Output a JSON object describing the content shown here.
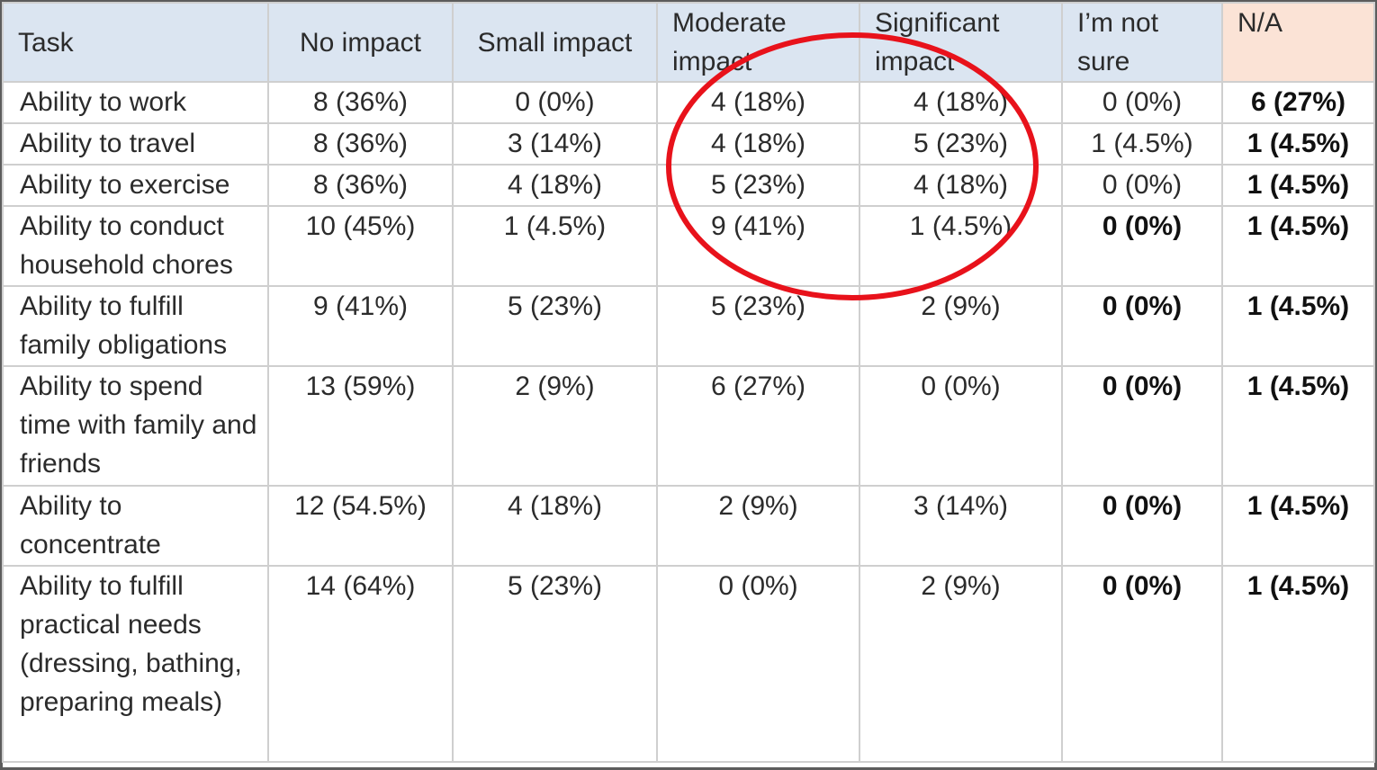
{
  "table": {
    "headers": {
      "task": "Task",
      "no_impact": "No impact",
      "small_impact": "Small impact",
      "moderate_impact": "Moderate impact",
      "significant_impact": "Significant impact",
      "not_sure": "I’m not sure",
      "na": "N/A"
    },
    "rows": [
      {
        "task": "Ability to work",
        "no": "8 (36%)",
        "small": "0 (0%)",
        "moderate": "4 (18%)",
        "significant": "4 (18%)",
        "notsure": "0 (0%)",
        "na": "6 (27%)"
      },
      {
        "task": "Ability to travel",
        "no": "8 (36%)",
        "small": "3 (14%)",
        "moderate": "4 (18%)",
        "significant": "5 (23%)",
        "notsure": "1 (4.5%)",
        "na": "1 (4.5%)"
      },
      {
        "task": "Ability to exercise",
        "no": "8 (36%)",
        "small": "4 (18%)",
        "moderate": "5 (23%)",
        "significant": "4 (18%)",
        "notsure": "0 (0%)",
        "na": "1 (4.5%)"
      },
      {
        "task": "Ability to conduct household chores",
        "no": "10 (45%)",
        "small": "1 (4.5%)",
        "moderate": "9 (41%)",
        "significant": "1 (4.5%)",
        "notsure": "0 (0%)",
        "na": "1 (4.5%)"
      },
      {
        "task": "Ability to fulfill family obligations",
        "no": "9 (41%)",
        "small": "5 (23%)",
        "moderate": "5 (23%)",
        "significant": "2 (9%)",
        "notsure": "0 (0%)",
        "na": "1 (4.5%)"
      },
      {
        "task": "Ability to spend time with family and friends",
        "no": "13 (59%)",
        "small": "2 (9%)",
        "moderate": "6 (27%)",
        "significant": "0 (0%)",
        "notsure": "0 (0%)",
        "na": "1 (4.5%)"
      },
      {
        "task": "Ability to concentrate",
        "no": "12 (54.5%)",
        "small": "4 (18%)",
        "moderate": "2 (9%)",
        "significant": "3 (14%)",
        "notsure": "0 (0%)",
        "na": "1 (4.5%)"
      },
      {
        "task": "Ability to fulfill practical needs (dressing, bathing, preparing meals)",
        "no": "14 (64%)",
        "small": "5 (23%)",
        "moderate": "0 (0%)",
        "significant": "2 (9%)",
        "notsure": "0 (0%)",
        "na": "1 (4.5%)"
      }
    ]
  },
  "colors": {
    "header_bg": "#dbe5f1",
    "na_header_bg": "#fbe3d6",
    "grid": "#cfcfcf",
    "highlight_ellipse": "#e8121b"
  }
}
